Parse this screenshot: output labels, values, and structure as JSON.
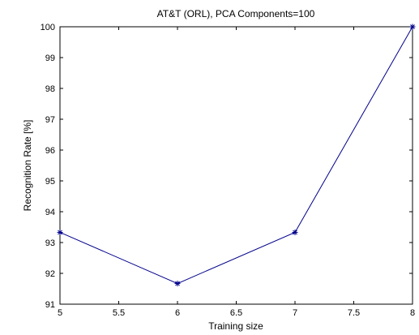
{
  "chart_data": {
    "type": "line",
    "title": "AT&T (ORL), PCA Components=100",
    "xlabel": "Training size",
    "ylabel": "Recognition Rate [%]",
    "xlim": [
      5,
      8
    ],
    "ylim": [
      91,
      100
    ],
    "x_ticks": [
      "5",
      "5.5",
      "6",
      "6.5",
      "7",
      "7.5",
      "8"
    ],
    "y_ticks": [
      "91",
      "92",
      "93",
      "94",
      "95",
      "96",
      "97",
      "98",
      "99",
      "100"
    ],
    "grid": false,
    "legend": "none",
    "series": [
      {
        "x": [
          5,
          6,
          7,
          8
        ],
        "values": [
          93.33,
          91.67,
          93.33,
          100
        ],
        "color": "#00008B",
        "marker": "asterisk"
      }
    ]
  }
}
